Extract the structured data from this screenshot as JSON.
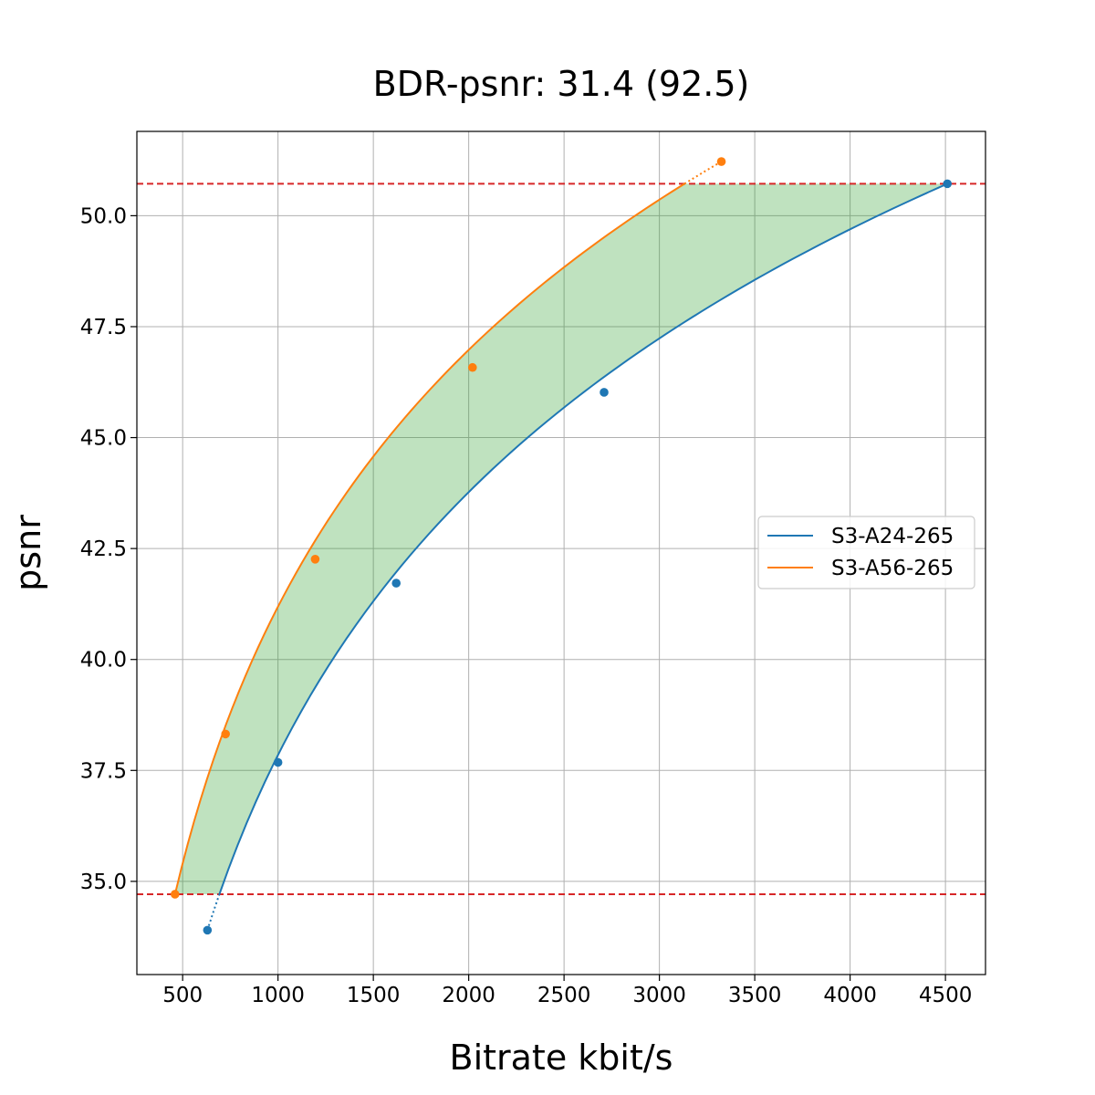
{
  "chart_data": {
    "type": "line",
    "title": "BDR-psnr: 31.4 (92.5)",
    "xlabel": "Bitrate kbit/s",
    "ylabel": "psnr",
    "xlim": [
      260,
      4710
    ],
    "ylim": [
      32.9,
      51.9
    ],
    "x_ticks": [
      500,
      1000,
      1500,
      2000,
      2500,
      3000,
      3500,
      4000,
      4500
    ],
    "y_ticks": [
      35.0,
      37.5,
      40.0,
      42.5,
      45.0,
      47.5,
      50.0
    ],
    "x_tick_labels": [
      "500",
      "1000",
      "1500",
      "2000",
      "2500",
      "3000",
      "3500",
      "4000",
      "4500"
    ],
    "y_tick_labels": [
      "35.0",
      "37.5",
      "40.0",
      "42.5",
      "45.0",
      "47.5",
      "50.0"
    ],
    "grid": true,
    "legend_position": "center-right",
    "reference_lines": [
      {
        "y": 50.72,
        "style": "dashed",
        "color": "#d62728"
      },
      {
        "y": 34.71,
        "style": "dashed",
        "color": "#d62728"
      }
    ],
    "fill_between": {
      "color": "#2ca02c",
      "opacity": 0.3,
      "y_range": [
        34.71,
        50.72
      ]
    },
    "series": [
      {
        "name": "S3-A24-265",
        "color": "#1f77b4",
        "points": [
          {
            "x": 630,
            "y": 33.9
          },
          {
            "x": 1000,
            "y": 37.68
          },
          {
            "x": 1620,
            "y": 41.72
          },
          {
            "x": 2710,
            "y": 46.02
          },
          {
            "x": 4510,
            "y": 50.72
          }
        ]
      },
      {
        "name": "S3-A56-265",
        "color": "#ff7f0e",
        "points": [
          {
            "x": 460,
            "y": 34.71
          },
          {
            "x": 725,
            "y": 38.32
          },
          {
            "x": 1195,
            "y": 42.26
          },
          {
            "x": 2020,
            "y": 46.58
          },
          {
            "x": 3325,
            "y": 51.22
          }
        ]
      }
    ]
  }
}
